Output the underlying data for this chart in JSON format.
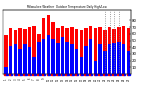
{
  "title": "Milwaukee Weather  Outdoor Temperature Daily High/Low",
  "highs": [
    58,
    68,
    65,
    68,
    67,
    70,
    72,
    60,
    83,
    88,
    78,
    68,
    72,
    68,
    70,
    67,
    65,
    68,
    72,
    68,
    70,
    65,
    70,
    67,
    70,
    72,
    68
  ],
  "lows": [
    10,
    42,
    45,
    38,
    45,
    40,
    25,
    48,
    52,
    58,
    52,
    47,
    55,
    48,
    45,
    38,
    25,
    42,
    52,
    20,
    45,
    35,
    45,
    47,
    48,
    45,
    35
  ],
  "dotted_cols": [
    21,
    22,
    23,
    24
  ],
  "high_color": "#ff0000",
  "low_color": "#0000ff",
  "bg_color": "#ffffff",
  "yticks": [
    10,
    20,
    30,
    40,
    50,
    60,
    70,
    80
  ],
  "ylim": [
    0,
    95
  ],
  "bar_width": 0.75
}
